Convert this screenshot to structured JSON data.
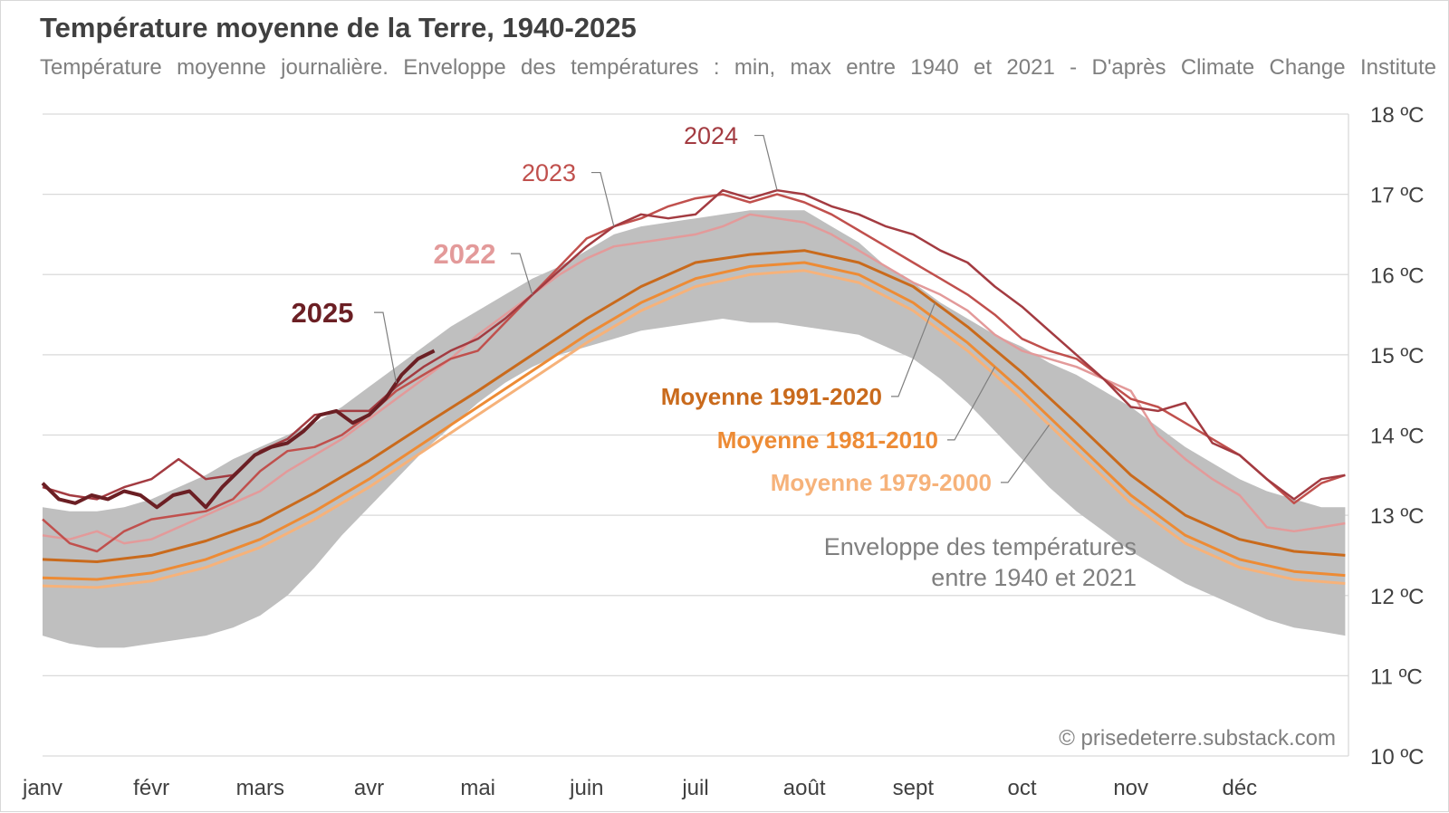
{
  "header": {
    "title": "Température moyenne de la Terre, 1940-2025",
    "subtitle": "Température moyenne journalière. Enveloppe des températures : min, max entre 1940 et 2021 - D'après Climate Change Institute"
  },
  "credit": "© prisedeterre.substack.com",
  "colors": {
    "envelope": "#bfbfbf",
    "s2025": "#6b1f24",
    "s2024": "#a33b41",
    "s2023": "#c0504d",
    "s2022": "#e39a9a",
    "m1991": "#c96a1c",
    "m1981": "#ed8b35",
    "m1979": "#f6b27a",
    "grid": "#d9d9d9",
    "axis_text": "#404040"
  },
  "chart_data": {
    "type": "line",
    "title": "Température moyenne de la Terre, 1940-2025",
    "x_unit": "mois",
    "x_range": [
      1,
      13
    ],
    "x_tick_labels": [
      "janv",
      "févr",
      "mars",
      "avr",
      "mai",
      "juin",
      "juil",
      "août",
      "sept",
      "oct",
      "nov",
      "déc"
    ],
    "y_range": [
      10,
      18
    ],
    "y_tick_values": [
      10,
      11,
      12,
      13,
      14,
      15,
      16,
      17,
      18
    ],
    "y_tick_labels": [
      "10 ºC",
      "11 ºC",
      "12 ºC",
      "13 ºC",
      "14 ºC",
      "15 ºC",
      "16 ºC",
      "17 ºC",
      "18 ºC"
    ],
    "grid": true,
    "envelope": {
      "label_line1": "Enveloppe des températures",
      "label_line2": "entre 1940 et 2021",
      "x": [
        1,
        1.25,
        1.5,
        1.75,
        2,
        2.25,
        2.5,
        2.75,
        3,
        3.25,
        3.5,
        3.75,
        4,
        4.25,
        4.5,
        4.75,
        5,
        5.25,
        5.5,
        5.75,
        6,
        6.25,
        6.5,
        6.75,
        7,
        7.25,
        7.5,
        7.75,
        8,
        8.25,
        8.5,
        8.75,
        9,
        9.25,
        9.5,
        9.75,
        10,
        10.25,
        10.5,
        10.75,
        11,
        11.25,
        11.5,
        11.75,
        12,
        12.25,
        12.5,
        12.75,
        12.97
      ],
      "min": [
        11.5,
        11.4,
        11.35,
        11.35,
        11.4,
        11.45,
        11.5,
        11.6,
        11.75,
        12.0,
        12.35,
        12.75,
        13.1,
        13.45,
        13.8,
        14.1,
        14.4,
        14.65,
        14.85,
        15.0,
        15.1,
        15.2,
        15.3,
        15.35,
        15.4,
        15.45,
        15.4,
        15.4,
        15.35,
        15.3,
        15.25,
        15.1,
        14.95,
        14.7,
        14.4,
        14.05,
        13.7,
        13.35,
        13.05,
        12.8,
        12.55,
        12.35,
        12.15,
        12.0,
        11.85,
        11.7,
        11.6,
        11.55,
        11.5
      ],
      "max": [
        13.1,
        13.05,
        13.05,
        13.1,
        13.2,
        13.35,
        13.5,
        13.7,
        13.85,
        14.0,
        14.15,
        14.35,
        14.6,
        14.85,
        15.1,
        15.35,
        15.55,
        15.75,
        15.95,
        16.1,
        16.3,
        16.5,
        16.6,
        16.65,
        16.7,
        16.75,
        16.8,
        16.8,
        16.8,
        16.6,
        16.4,
        16.1,
        15.9,
        15.65,
        15.45,
        15.25,
        15.1,
        14.9,
        14.75,
        14.55,
        14.35,
        14.1,
        13.85,
        13.65,
        13.45,
        13.3,
        13.2,
        13.1,
        13.1
      ]
    },
    "series": [
      {
        "name": "Moyenne 1979-2000",
        "color_key": "m1979",
        "width": 3,
        "x": [
          1,
          1.5,
          2,
          2.5,
          3,
          3.5,
          4,
          4.5,
          5,
          5.5,
          6,
          6.5,
          7,
          7.5,
          8,
          8.5,
          9,
          9.5,
          10,
          10.5,
          11,
          11.5,
          12,
          12.5,
          12.97
        ],
        "y": [
          12.12,
          12.1,
          12.18,
          12.35,
          12.6,
          12.95,
          13.35,
          13.8,
          14.25,
          14.7,
          15.15,
          15.55,
          15.85,
          16.0,
          16.05,
          15.9,
          15.55,
          15.05,
          14.45,
          13.8,
          13.15,
          12.65,
          12.35,
          12.2,
          12.15
        ]
      },
      {
        "name": "Moyenne 1981-2010",
        "color_key": "m1981",
        "width": 3,
        "x": [
          1,
          1.5,
          2,
          2.5,
          3,
          3.5,
          4,
          4.5,
          5,
          5.5,
          6,
          6.5,
          7,
          7.5,
          8,
          8.5,
          9,
          9.5,
          10,
          10.5,
          11,
          11.5,
          12,
          12.5,
          12.97
        ],
        "y": [
          12.22,
          12.2,
          12.28,
          12.45,
          12.7,
          13.05,
          13.45,
          13.9,
          14.35,
          14.8,
          15.25,
          15.65,
          15.95,
          16.1,
          16.15,
          16.0,
          15.65,
          15.15,
          14.55,
          13.9,
          13.25,
          12.75,
          12.45,
          12.3,
          12.25
        ]
      },
      {
        "name": "Moyenne 1991-2020",
        "color_key": "m1991",
        "width": 3,
        "x": [
          1,
          1.5,
          2,
          2.5,
          3,
          3.5,
          4,
          4.5,
          5,
          5.5,
          6,
          6.5,
          7,
          7.5,
          8,
          8.5,
          9,
          9.5,
          10,
          10.5,
          11,
          11.5,
          12,
          12.5,
          12.97
        ],
        "y": [
          12.45,
          12.42,
          12.5,
          12.68,
          12.92,
          13.28,
          13.68,
          14.12,
          14.55,
          15.0,
          15.45,
          15.85,
          16.15,
          16.25,
          16.3,
          16.15,
          15.85,
          15.35,
          14.78,
          14.15,
          13.5,
          13.0,
          12.7,
          12.55,
          12.5
        ]
      },
      {
        "name": "2022",
        "color_key": "s2022",
        "width": 2.5,
        "x": [
          1,
          1.25,
          1.5,
          1.75,
          2,
          2.25,
          2.5,
          2.75,
          3,
          3.25,
          3.5,
          3.75,
          4,
          4.25,
          4.5,
          4.75,
          5,
          5.25,
          5.5,
          5.75,
          6,
          6.25,
          6.5,
          6.75,
          7,
          7.25,
          7.5,
          7.75,
          8,
          8.25,
          8.5,
          8.75,
          9,
          9.25,
          9.5,
          9.75,
          10,
          10.25,
          10.5,
          10.75,
          11,
          11.25,
          11.5,
          11.75,
          12,
          12.25,
          12.5,
          12.75,
          12.97
        ],
        "y": [
          12.75,
          12.7,
          12.8,
          12.65,
          12.7,
          12.85,
          13.0,
          13.15,
          13.3,
          13.55,
          13.75,
          13.95,
          14.2,
          14.45,
          14.7,
          14.95,
          15.25,
          15.5,
          15.75,
          16.0,
          16.2,
          16.35,
          16.4,
          16.45,
          16.5,
          16.6,
          16.75,
          16.7,
          16.65,
          16.5,
          16.3,
          16.1,
          15.9,
          15.75,
          15.55,
          15.25,
          15.05,
          14.95,
          14.85,
          14.7,
          14.55,
          14.0,
          13.7,
          13.45,
          13.25,
          12.85,
          12.8,
          12.85,
          12.9
        ]
      },
      {
        "name": "2023",
        "color_key": "s2023",
        "width": 2.5,
        "x": [
          1,
          1.25,
          1.5,
          1.75,
          2,
          2.25,
          2.5,
          2.75,
          3,
          3.25,
          3.5,
          3.75,
          4,
          4.25,
          4.5,
          4.75,
          5,
          5.25,
          5.5,
          5.75,
          6,
          6.25,
          6.5,
          6.75,
          7,
          7.25,
          7.5,
          7.75,
          8,
          8.25,
          8.5,
          8.75,
          9,
          9.25,
          9.5,
          9.75,
          10,
          10.25,
          10.5,
          10.75,
          11,
          11.25,
          11.5,
          11.75,
          12,
          12.25,
          12.5,
          12.75,
          12.97
        ],
        "y": [
          12.95,
          12.65,
          12.55,
          12.8,
          12.95,
          13.0,
          13.05,
          13.2,
          13.55,
          13.8,
          13.85,
          14.0,
          14.25,
          14.55,
          14.75,
          14.95,
          15.05,
          15.4,
          15.75,
          16.1,
          16.45,
          16.6,
          16.7,
          16.85,
          16.95,
          17.0,
          16.9,
          17.0,
          16.9,
          16.75,
          16.55,
          16.35,
          16.15,
          15.95,
          15.75,
          15.5,
          15.2,
          15.05,
          14.95,
          14.7,
          14.45,
          14.35,
          14.15,
          13.95,
          13.75,
          13.45,
          13.15,
          13.4,
          13.5
        ]
      },
      {
        "name": "2024",
        "color_key": "s2024",
        "width": 2.5,
        "x": [
          1,
          1.25,
          1.5,
          1.75,
          2,
          2.25,
          2.5,
          2.75,
          3,
          3.25,
          3.5,
          3.75,
          4,
          4.25,
          4.5,
          4.75,
          5,
          5.25,
          5.5,
          5.75,
          6,
          6.25,
          6.5,
          6.75,
          7,
          7.25,
          7.5,
          7.75,
          8,
          8.25,
          8.5,
          8.75,
          9,
          9.25,
          9.5,
          9.75,
          10,
          10.25,
          10.5,
          10.75,
          11,
          11.25,
          11.5,
          11.75,
          12,
          12.25,
          12.5,
          12.75,
          12.97
        ],
        "y": [
          13.35,
          13.25,
          13.2,
          13.35,
          13.45,
          13.7,
          13.45,
          13.5,
          13.8,
          13.95,
          14.25,
          14.3,
          14.3,
          14.6,
          14.85,
          15.05,
          15.2,
          15.45,
          15.75,
          16.05,
          16.35,
          16.6,
          16.75,
          16.7,
          16.75,
          17.05,
          16.95,
          17.05,
          17.0,
          16.85,
          16.75,
          16.6,
          16.5,
          16.3,
          16.15,
          15.85,
          15.6,
          15.3,
          15.0,
          14.7,
          14.35,
          14.3,
          14.4,
          13.9,
          13.75,
          13.45,
          13.2,
          13.45,
          13.5
        ]
      },
      {
        "name": "2025",
        "color_key": "s2025",
        "width": 4,
        "x": [
          1,
          1.15,
          1.3,
          1.45,
          1.6,
          1.75,
          1.9,
          2.05,
          2.2,
          2.35,
          2.5,
          2.65,
          2.8,
          2.95,
          3.1,
          3.25,
          3.4,
          3.55,
          3.7,
          3.85,
          4.0,
          4.15,
          4.3,
          4.45,
          4.6
        ],
        "y": [
          13.4,
          13.2,
          13.15,
          13.25,
          13.2,
          13.3,
          13.25,
          13.1,
          13.25,
          13.3,
          13.1,
          13.35,
          13.55,
          13.75,
          13.85,
          13.9,
          14.05,
          14.25,
          14.3,
          14.15,
          14.25,
          14.45,
          14.75,
          14.95,
          15.05
        ]
      }
    ]
  }
}
